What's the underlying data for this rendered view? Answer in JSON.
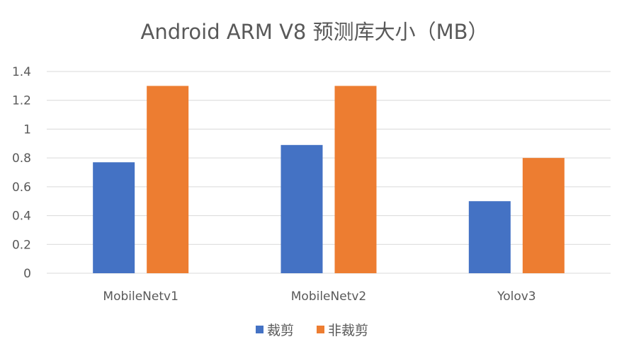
{
  "chart_data": {
    "type": "bar",
    "title": "Android ARM V8 预测库大小（MB）",
    "categories": [
      "MobileNetv1",
      "MobileNetv2",
      "Yolov3"
    ],
    "series": [
      {
        "name": "裁剪",
        "values": [
          0.77,
          0.89,
          0.5
        ],
        "color": "#4472c4"
      },
      {
        "name": "非裁剪",
        "values": [
          1.3,
          1.3,
          0.8
        ],
        "color": "#ed7d31"
      }
    ],
    "ylim": [
      0,
      1.4
    ],
    "yticks": [
      "0",
      "0.2",
      "0.4",
      "0.6",
      "0.8",
      "1",
      "1.2",
      "1.4"
    ],
    "ytick_values": [
      0,
      0.2,
      0.4,
      0.6,
      0.8,
      1,
      1.2,
      1.4
    ],
    "grid": true,
    "legend_position": "bottom"
  }
}
